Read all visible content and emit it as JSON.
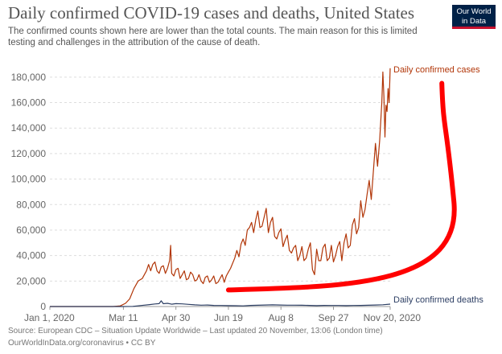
{
  "header": {
    "title": "Daily confirmed COVID-19 cases and deaths, United States",
    "subtitle": "The confirmed counts shown here are lower than the total counts. The main reason for this is limited testing and challenges in the attribution of the cause of death.",
    "logo_line1": "Our World",
    "logo_line2": "in Data"
  },
  "footer": {
    "source": "Source: European CDC – Situation Update Worldwide – Last updated 20 November, 13:06 (London time)",
    "license": "OurWorldInData.org/coronavirus • CC BY"
  },
  "colors": {
    "cases": "#b13507",
    "deaths": "#2c3e63",
    "grid": "#dddddd",
    "annotation": "#ff0000",
    "axis_text": "#666666"
  },
  "chart_data": {
    "type": "line",
    "title": "Daily confirmed COVID-19 cases and deaths, United States",
    "xlabel": "",
    "ylabel": "",
    "xlim": [
      "2020-01-01",
      "2020-11-20"
    ],
    "ylim": [
      0,
      190000
    ],
    "grid": true,
    "x_ticks": [
      "Jan 1, 2020",
      "Mar 11",
      "Apr 30",
      "Jun 19",
      "Aug 8",
      "Sep 27",
      "Nov 20, 2020"
    ],
    "x_tick_dates": [
      "2020-01-01",
      "2020-03-11",
      "2020-04-30",
      "2020-06-19",
      "2020-08-08",
      "2020-09-27",
      "2020-11-20"
    ],
    "y_ticks": [
      0,
      20000,
      40000,
      60000,
      80000,
      100000,
      120000,
      140000,
      160000,
      180000
    ],
    "y_tick_labels": [
      "0",
      "20,000",
      "40,000",
      "60,000",
      "80,000",
      "100,000",
      "120,000",
      "140,000",
      "160,000",
      "180,000"
    ],
    "series": [
      {
        "name": "Daily confirmed cases",
        "points": [
          [
            "2020-01-01",
            0
          ],
          [
            "2020-03-01",
            0
          ],
          [
            "2020-03-08",
            500
          ],
          [
            "2020-03-13",
            2500
          ],
          [
            "2020-03-17",
            6000
          ],
          [
            "2020-03-21",
            14000
          ],
          [
            "2020-03-25",
            20000
          ],
          [
            "2020-03-29",
            22000
          ],
          [
            "2020-04-02",
            28000
          ],
          [
            "2020-04-04",
            33000
          ],
          [
            "2020-04-06",
            28000
          ],
          [
            "2020-04-08",
            33000
          ],
          [
            "2020-04-10",
            35000
          ],
          [
            "2020-04-12",
            28000
          ],
          [
            "2020-04-14",
            26000
          ],
          [
            "2020-04-16",
            31000
          ],
          [
            "2020-04-18",
            32000
          ],
          [
            "2020-04-20",
            26000
          ],
          [
            "2020-04-22",
            30000
          ],
          [
            "2020-04-24",
            36000
          ],
          [
            "2020-04-25",
            48000
          ],
          [
            "2020-04-26",
            26000
          ],
          [
            "2020-04-28",
            24000
          ],
          [
            "2020-04-30",
            29000
          ],
          [
            "2020-05-02",
            30000
          ],
          [
            "2020-05-04",
            22000
          ],
          [
            "2020-05-06",
            25000
          ],
          [
            "2020-05-08",
            28000
          ],
          [
            "2020-05-10",
            21000
          ],
          [
            "2020-05-12",
            22000
          ],
          [
            "2020-05-14",
            27000
          ],
          [
            "2020-05-16",
            25000
          ],
          [
            "2020-05-18",
            20000
          ],
          [
            "2020-05-20",
            21000
          ],
          [
            "2020-05-22",
            25000
          ],
          [
            "2020-05-24",
            20000
          ],
          [
            "2020-05-26",
            18000
          ],
          [
            "2020-05-28",
            23000
          ],
          [
            "2020-05-30",
            24000
          ],
          [
            "2020-06-01",
            19000
          ],
          [
            "2020-06-03",
            21000
          ],
          [
            "2020-06-05",
            24000
          ],
          [
            "2020-06-07",
            18000
          ],
          [
            "2020-06-09",
            19000
          ],
          [
            "2020-06-11",
            22000
          ],
          [
            "2020-06-13",
            25000
          ],
          [
            "2020-06-15",
            19000
          ],
          [
            "2020-06-17",
            24000
          ],
          [
            "2020-06-19",
            27000
          ],
          [
            "2020-06-21",
            30000
          ],
          [
            "2020-06-23",
            34000
          ],
          [
            "2020-06-25",
            38000
          ],
          [
            "2020-06-27",
            44000
          ],
          [
            "2020-06-29",
            39000
          ],
          [
            "2020-07-01",
            49000
          ],
          [
            "2020-07-03",
            53000
          ],
          [
            "2020-07-05",
            48000
          ],
          [
            "2020-07-07",
            60000
          ],
          [
            "2020-07-09",
            62000
          ],
          [
            "2020-07-11",
            66000
          ],
          [
            "2020-07-13",
            58000
          ],
          [
            "2020-07-15",
            68000
          ],
          [
            "2020-07-17",
            75000
          ],
          [
            "2020-07-19",
            62000
          ],
          [
            "2020-07-21",
            63000
          ],
          [
            "2020-07-23",
            70000
          ],
          [
            "2020-07-25",
            77000
          ],
          [
            "2020-07-27",
            58000
          ],
          [
            "2020-07-29",
            66000
          ],
          [
            "2020-07-31",
            70000
          ],
          [
            "2020-08-02",
            55000
          ],
          [
            "2020-08-04",
            53000
          ],
          [
            "2020-08-06",
            58000
          ],
          [
            "2020-08-08",
            61000
          ],
          [
            "2020-08-10",
            47000
          ],
          [
            "2020-08-12",
            52000
          ],
          [
            "2020-08-14",
            56000
          ],
          [
            "2020-08-16",
            44000
          ],
          [
            "2020-08-18",
            42000
          ],
          [
            "2020-08-20",
            46000
          ],
          [
            "2020-08-22",
            48000
          ],
          [
            "2020-08-24",
            36000
          ],
          [
            "2020-08-26",
            40000
          ],
          [
            "2020-08-28",
            47000
          ],
          [
            "2020-08-30",
            36000
          ],
          [
            "2020-09-01",
            38000
          ],
          [
            "2020-09-03",
            45000
          ],
          [
            "2020-09-05",
            50000
          ],
          [
            "2020-09-07",
            29000
          ],
          [
            "2020-09-09",
            25000
          ],
          [
            "2020-09-11",
            45000
          ],
          [
            "2020-09-13",
            36000
          ],
          [
            "2020-09-15",
            36000
          ],
          [
            "2020-09-17",
            46000
          ],
          [
            "2020-09-19",
            49000
          ],
          [
            "2020-09-21",
            36000
          ],
          [
            "2020-09-23",
            38000
          ],
          [
            "2020-09-25",
            48000
          ],
          [
            "2020-09-27",
            35000
          ],
          [
            "2020-09-29",
            40000
          ],
          [
            "2020-10-01",
            47000
          ],
          [
            "2020-10-03",
            51000
          ],
          [
            "2020-10-05",
            36000
          ],
          [
            "2020-10-07",
            50000
          ],
          [
            "2020-10-09",
            57000
          ],
          [
            "2020-10-11",
            46000
          ],
          [
            "2020-10-13",
            48000
          ],
          [
            "2020-10-15",
            64000
          ],
          [
            "2020-10-17",
            69000
          ],
          [
            "2020-10-19",
            57000
          ],
          [
            "2020-10-21",
            62000
          ],
          [
            "2020-10-23",
            83000
          ],
          [
            "2020-10-25",
            70000
          ],
          [
            "2020-10-27",
            76000
          ],
          [
            "2020-10-29",
            88000
          ],
          [
            "2020-10-31",
            99000
          ],
          [
            "2020-11-02",
            84000
          ],
          [
            "2020-11-04",
            106000
          ],
          [
            "2020-11-06",
            128000
          ],
          [
            "2020-11-08",
            110000
          ],
          [
            "2020-11-10",
            130000
          ],
          [
            "2020-11-12",
            160000
          ],
          [
            "2020-11-13",
            184000
          ],
          [
            "2020-11-14",
            165000
          ],
          [
            "2020-11-15",
            133000
          ],
          [
            "2020-11-16",
            158000
          ],
          [
            "2020-11-17",
            153000
          ],
          [
            "2020-11-18",
            171000
          ],
          [
            "2020-11-19",
            160000
          ],
          [
            "2020-11-20",
            187000
          ]
        ]
      },
      {
        "name": "Daily confirmed deaths",
        "points": [
          [
            "2020-01-01",
            0
          ],
          [
            "2020-03-10",
            0
          ],
          [
            "2020-03-20",
            150
          ],
          [
            "2020-03-28",
            800
          ],
          [
            "2020-04-05",
            1500
          ],
          [
            "2020-04-10",
            2000
          ],
          [
            "2020-04-14",
            2300
          ],
          [
            "2020-04-16",
            4500
          ],
          [
            "2020-04-18",
            2200
          ],
          [
            "2020-04-22",
            2500
          ],
          [
            "2020-04-26",
            1800
          ],
          [
            "2020-04-30",
            2300
          ],
          [
            "2020-05-06",
            2100
          ],
          [
            "2020-05-12",
            1700
          ],
          [
            "2020-05-18",
            1300
          ],
          [
            "2020-05-24",
            1100
          ],
          [
            "2020-05-30",
            1200
          ],
          [
            "2020-06-05",
            900
          ],
          [
            "2020-06-12",
            800
          ],
          [
            "2020-06-19",
            700
          ],
          [
            "2020-06-26",
            600
          ],
          [
            "2020-07-03",
            500
          ],
          [
            "2020-07-10",
            900
          ],
          [
            "2020-07-17",
            1000
          ],
          [
            "2020-07-24",
            1200
          ],
          [
            "2020-07-31",
            1300
          ],
          [
            "2020-08-07",
            1200
          ],
          [
            "2020-08-14",
            1100
          ],
          [
            "2020-08-21",
            1100
          ],
          [
            "2020-08-28",
            1000
          ],
          [
            "2020-09-04",
            900
          ],
          [
            "2020-09-11",
            700
          ],
          [
            "2020-09-18",
            900
          ],
          [
            "2020-09-25",
            800
          ],
          [
            "2020-10-02",
            800
          ],
          [
            "2020-10-09",
            700
          ],
          [
            "2020-10-16",
            800
          ],
          [
            "2020-10-23",
            900
          ],
          [
            "2020-10-30",
            1000
          ],
          [
            "2020-11-06",
            1200
          ],
          [
            "2020-11-13",
            1400
          ],
          [
            "2020-11-20",
            1900
          ]
        ]
      }
    ],
    "annotation": {
      "type": "hand-drawn-arrow-curve",
      "from": [
        "2020-06-19",
        13000
      ],
      "to": [
        "2020-11-14",
        172000
      ]
    }
  }
}
